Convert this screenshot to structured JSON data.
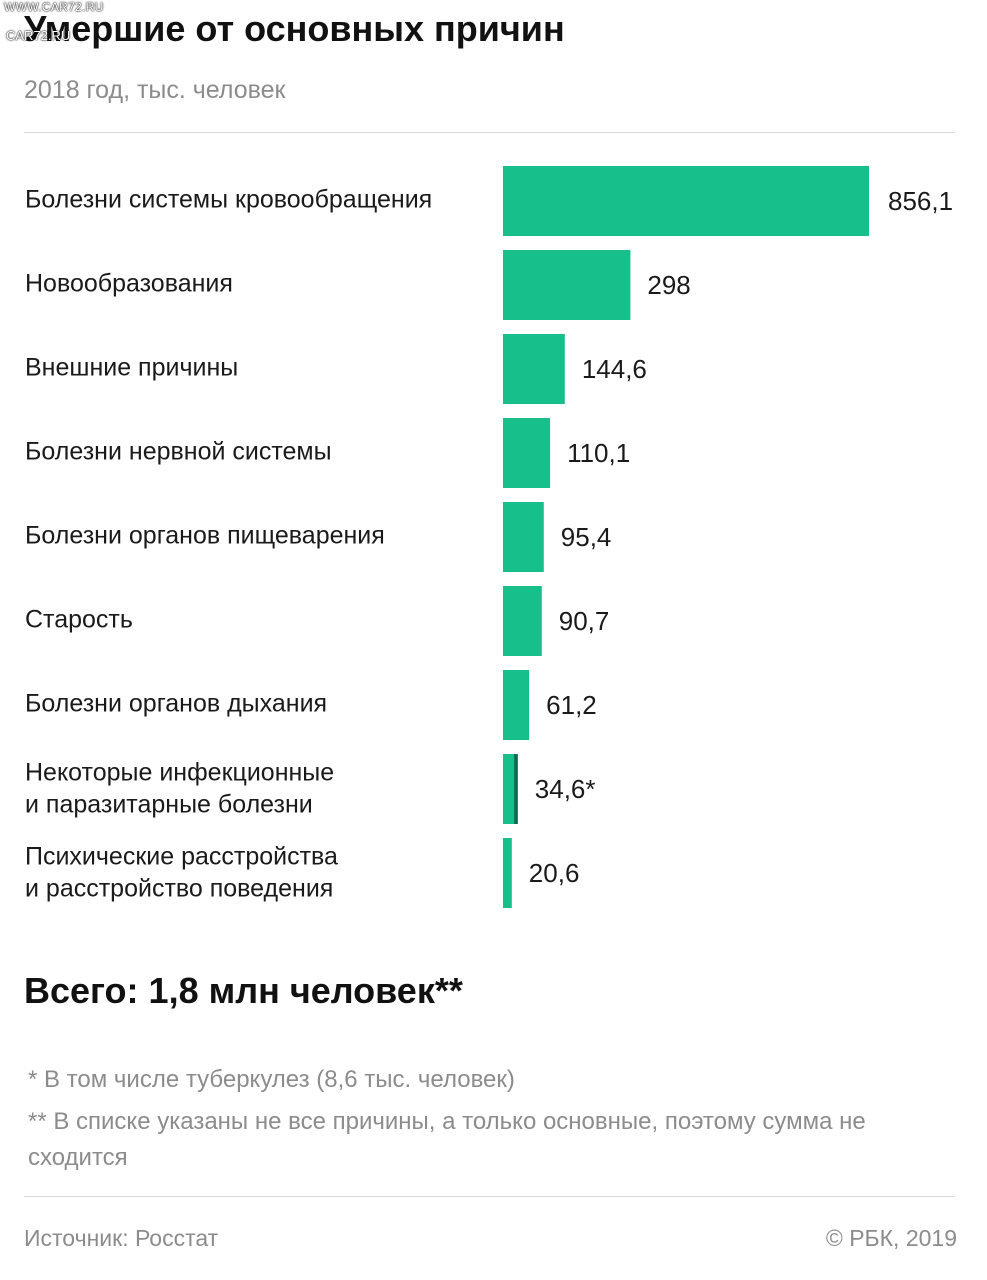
{
  "watermark": {
    "site": "WWW.CAR72.RU",
    "logo": "CAR72.RU"
  },
  "header": {
    "title": "Умершие от основных причин",
    "subtitle": "2018 год, тыс. человек"
  },
  "colors": {
    "bar": "#17c08a",
    "bar_accent": "#0f6b55"
  },
  "chart_data": {
    "type": "bar",
    "orientation": "horizontal",
    "categories": [
      [
        "Болезни системы кровообращения"
      ],
      [
        "Новообразования"
      ],
      [
        "Внешние причины"
      ],
      [
        "Болезни нервной системы"
      ],
      [
        "Болезни органов пищеварения"
      ],
      [
        "Старость"
      ],
      [
        "Болезни органов дыхания"
      ],
      [
        "Некоторые инфекционные",
        "и паразитарные болезни"
      ],
      [
        "Психические расстройства",
        "и расстройство поведения"
      ]
    ],
    "values": [
      856.1,
      298,
      144.6,
      110.1,
      95.4,
      90.7,
      61.2,
      34.6,
      20.6
    ],
    "value_labels": [
      "856,1",
      "298",
      "144,6",
      "110,1",
      "95,4",
      "90,7",
      "61,2",
      "34,6*",
      "20,6"
    ],
    "subset": {
      "category_index": 7,
      "value": 8.6
    },
    "xlim": [
      0,
      856.1
    ],
    "grid": false,
    "legend": "none"
  },
  "total": "Всего: 1,8 млн человек**",
  "notes": [
    "* В том числе туберкулез (8,6 тыс. человек)",
    "** В списке указаны не все причины, а только основные, поэтому сумма не сходится"
  ],
  "footer": {
    "source": "Источник: Росстат",
    "copyright": "© РБК, 2019"
  }
}
